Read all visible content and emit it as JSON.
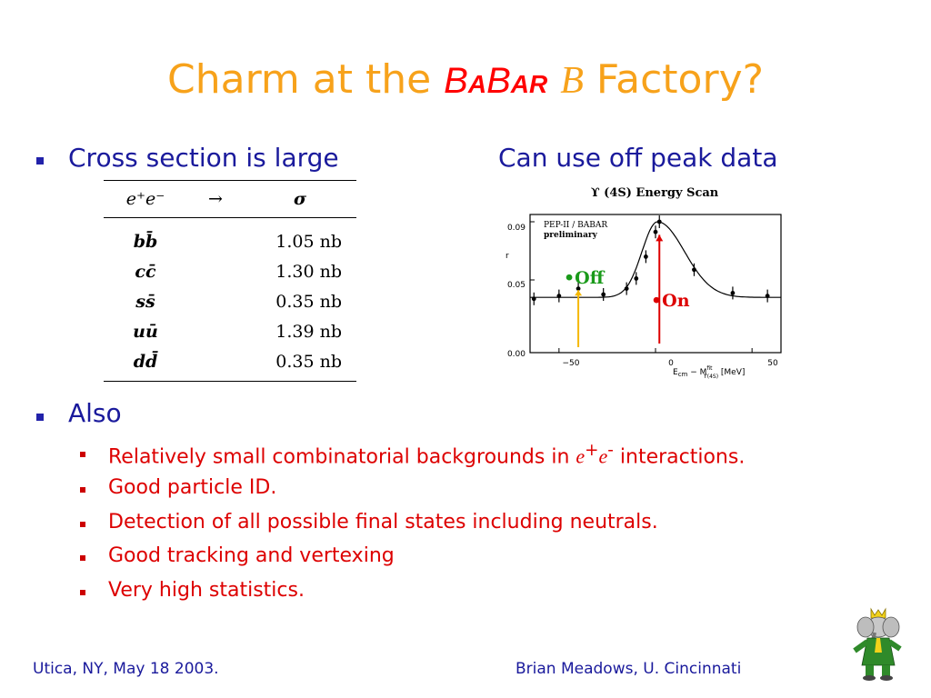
{
  "title": {
    "prefix": "Charm at the ",
    "babar_B1": "B",
    "babar_a1": "A",
    "babar_B2": "B",
    "babar_a2": "AR",
    "b_symbol": "B",
    "suffix": " Factory?"
  },
  "bullets": [
    {
      "text": "Cross section is large"
    },
    {
      "text": "Also"
    }
  ],
  "right_heading": "Can use off peak data",
  "cross_section_table": {
    "headers": [
      "e⁺e⁻",
      "→",
      "σ"
    ],
    "rows": [
      {
        "q": "bb̄",
        "value": "1.05 nb"
      },
      {
        "q": "cc̄",
        "value": "1.30 nb"
      },
      {
        "q": "ss̄",
        "value": "0.35 nb"
      },
      {
        "q": "uū",
        "value": "1.39 nb"
      },
      {
        "q": "dd̄",
        "value": "0.35 nb"
      }
    ]
  },
  "sub_bullets": [
    {
      "before": "Relatively small combinatorial backgrounds in ",
      "e1": "e",
      "sup1": "+",
      "e2": "e",
      "sup2": "-",
      "after": " interactions."
    },
    {
      "text": "Good particle ID."
    },
    {
      "text": "Detection of all possible final states including neutrals."
    },
    {
      "text": "Good tracking and vertexing"
    },
    {
      "text": "Very high statistics."
    }
  ],
  "plot": {
    "title": "ϒ (4S)  Energy Scan",
    "legend_line1": "PEP-II / BABAR",
    "legend_line2": "preliminary",
    "ylabel": "r",
    "yticks": [
      "0.09",
      "0.05",
      "0.00"
    ],
    "xticks": [
      "−50",
      "0",
      "50"
    ],
    "xlabel": "E",
    "xlabel_sub": "cm",
    "xlabel_mid": " − M",
    "xlabel_sup": "fit",
    "xlabel_sub2": "ϒ(4S)",
    "xlabel_unit": " [MeV]",
    "off_label": "•Off",
    "on_label": "•On",
    "off_color": "#1a9a1a",
    "on_color": "#dd0000",
    "off_arrow_color": "#f5b800",
    "on_arrow_color": "#dd0000"
  },
  "chart_data": {
    "type": "scatter",
    "title": "ϒ (4S)  Energy Scan",
    "xlabel": "E_cm − M^fit_ϒ(4S) [MeV]",
    "ylabel": "r",
    "xlim": [
      -65,
      65
    ],
    "ylim": [
      0.0,
      0.095
    ],
    "points": [
      {
        "x": -63,
        "y": 0.037
      },
      {
        "x": -50,
        "y": 0.039
      },
      {
        "x": -40,
        "y": 0.044
      },
      {
        "x": -27,
        "y": 0.04
      },
      {
        "x": -15,
        "y": 0.044
      },
      {
        "x": -10,
        "y": 0.051
      },
      {
        "x": -5,
        "y": 0.066
      },
      {
        "x": 0,
        "y": 0.083
      },
      {
        "x": 2,
        "y": 0.09
      },
      {
        "x": 20,
        "y": 0.057
      },
      {
        "x": 40,
        "y": 0.041
      },
      {
        "x": 58,
        "y": 0.039
      }
    ],
    "annotations": [
      "•Off",
      "•On"
    ]
  },
  "footer": {
    "left": "Utica, NY, May 18 2003.",
    "right": "Brian Meadows, U. Cincinnati"
  }
}
